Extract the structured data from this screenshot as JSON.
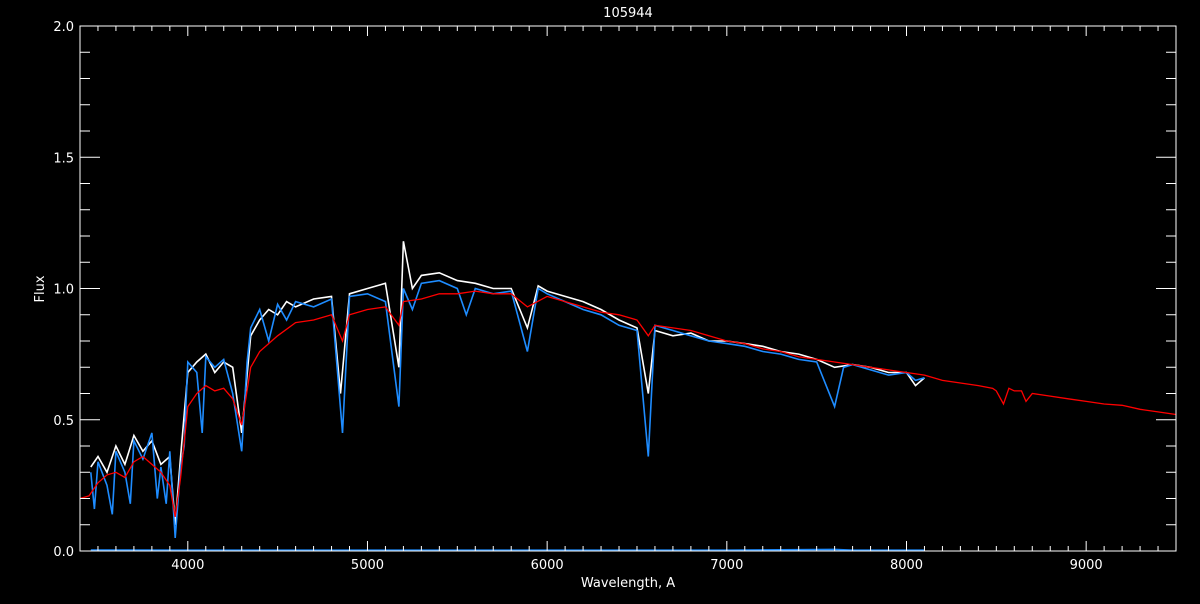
{
  "chart_data": {
    "type": "line",
    "title": "105944",
    "xlabel": "Wavelength, A",
    "ylabel": "Flux",
    "xlim": [
      3400,
      9500
    ],
    "ylim": [
      0.0,
      2.0
    ],
    "x_ticks": [
      4000,
      5000,
      6000,
      7000,
      8000,
      9000
    ],
    "x_tick_labels": [
      "4000",
      "5000",
      "6000",
      "7000",
      "8000",
      "9000"
    ],
    "y_ticks": [
      0.0,
      0.5,
      1.0,
      1.5,
      2.0
    ],
    "y_tick_labels": [
      "0.0",
      "0.5",
      "1.0",
      "1.5",
      "2.0"
    ],
    "x_minor_step": 100,
    "y_minor_step": 0.1,
    "grid": false,
    "background": "#000000",
    "series": [
      {
        "color": "#ffffff",
        "points": [
          [
            3460,
            0.32
          ],
          [
            3500,
            0.36
          ],
          [
            3550,
            0.3
          ],
          [
            3600,
            0.4
          ],
          [
            3650,
            0.33
          ],
          [
            3700,
            0.44
          ],
          [
            3750,
            0.38
          ],
          [
            3800,
            0.42
          ],
          [
            3850,
            0.33
          ],
          [
            3900,
            0.36
          ],
          [
            3930,
            0.1
          ],
          [
            3960,
            0.36
          ],
          [
            4000,
            0.68
          ],
          [
            4050,
            0.72
          ],
          [
            4100,
            0.75
          ],
          [
            4150,
            0.68
          ],
          [
            4200,
            0.72
          ],
          [
            4250,
            0.7
          ],
          [
            4300,
            0.45
          ],
          [
            4350,
            0.82
          ],
          [
            4400,
            0.88
          ],
          [
            4450,
            0.92
          ],
          [
            4500,
            0.9
          ],
          [
            4550,
            0.95
          ],
          [
            4600,
            0.93
          ],
          [
            4700,
            0.96
          ],
          [
            4800,
            0.97
          ],
          [
            4850,
            0.6
          ],
          [
            4900,
            0.98
          ],
          [
            5000,
            1.0
          ],
          [
            5100,
            1.02
          ],
          [
            5175,
            0.7
          ],
          [
            5200,
            1.18
          ],
          [
            5250,
            1.0
          ],
          [
            5300,
            1.05
          ],
          [
            5400,
            1.06
          ],
          [
            5500,
            1.03
          ],
          [
            5600,
            1.02
          ],
          [
            5700,
            1.0
          ],
          [
            5800,
            1.0
          ],
          [
            5890,
            0.85
          ],
          [
            5950,
            1.01
          ],
          [
            6000,
            0.99
          ],
          [
            6100,
            0.97
          ],
          [
            6200,
            0.95
          ],
          [
            6300,
            0.92
          ],
          [
            6400,
            0.88
          ],
          [
            6500,
            0.85
          ],
          [
            6563,
            0.6
          ],
          [
            6600,
            0.84
          ],
          [
            6700,
            0.82
          ],
          [
            6800,
            0.83
          ],
          [
            6900,
            0.8
          ],
          [
            7000,
            0.8
          ],
          [
            7100,
            0.79
          ],
          [
            7200,
            0.78
          ],
          [
            7300,
            0.76
          ],
          [
            7400,
            0.75
          ],
          [
            7500,
            0.73
          ],
          [
            7600,
            0.7
          ],
          [
            7700,
            0.71
          ],
          [
            7800,
            0.7
          ],
          [
            7900,
            0.68
          ],
          [
            8000,
            0.68
          ],
          [
            8050,
            0.63
          ],
          [
            8100,
            0.66
          ]
        ]
      },
      {
        "color": "#1e8cff",
        "points": [
          [
            3460,
            0.3
          ],
          [
            3480,
            0.16
          ],
          [
            3500,
            0.34
          ],
          [
            3550,
            0.25
          ],
          [
            3580,
            0.14
          ],
          [
            3600,
            0.38
          ],
          [
            3650,
            0.3
          ],
          [
            3680,
            0.18
          ],
          [
            3700,
            0.42
          ],
          [
            3750,
            0.35
          ],
          [
            3800,
            0.45
          ],
          [
            3830,
            0.2
          ],
          [
            3850,
            0.32
          ],
          [
            3880,
            0.18
          ],
          [
            3900,
            0.38
          ],
          [
            3930,
            0.05
          ],
          [
            3960,
            0.32
          ],
          [
            3980,
            0.4
          ],
          [
            4000,
            0.72
          ],
          [
            4050,
            0.68
          ],
          [
            4080,
            0.45
          ],
          [
            4100,
            0.74
          ],
          [
            4150,
            0.7
          ],
          [
            4200,
            0.73
          ],
          [
            4250,
            0.6
          ],
          [
            4300,
            0.38
          ],
          [
            4330,
            0.72
          ],
          [
            4350,
            0.85
          ],
          [
            4400,
            0.92
          ],
          [
            4450,
            0.8
          ],
          [
            4500,
            0.94
          ],
          [
            4550,
            0.88
          ],
          [
            4600,
            0.95
          ],
          [
            4700,
            0.93
          ],
          [
            4800,
            0.96
          ],
          [
            4861,
            0.45
          ],
          [
            4900,
            0.97
          ],
          [
            5000,
            0.98
          ],
          [
            5100,
            0.95
          ],
          [
            5175,
            0.55
          ],
          [
            5200,
            1.0
          ],
          [
            5250,
            0.92
          ],
          [
            5300,
            1.02
          ],
          [
            5400,
            1.03
          ],
          [
            5500,
            1.0
          ],
          [
            5550,
            0.9
          ],
          [
            5600,
            1.0
          ],
          [
            5700,
            0.98
          ],
          [
            5800,
            0.99
          ],
          [
            5890,
            0.76
          ],
          [
            5950,
            1.0
          ],
          [
            6000,
            0.98
          ],
          [
            6100,
            0.95
          ],
          [
            6200,
            0.92
          ],
          [
            6300,
            0.9
          ],
          [
            6400,
            0.86
          ],
          [
            6500,
            0.84
          ],
          [
            6563,
            0.36
          ],
          [
            6600,
            0.86
          ],
          [
            6700,
            0.84
          ],
          [
            6800,
            0.82
          ],
          [
            6900,
            0.8
          ],
          [
            7000,
            0.79
          ],
          [
            7100,
            0.78
          ],
          [
            7200,
            0.76
          ],
          [
            7300,
            0.75
          ],
          [
            7400,
            0.73
          ],
          [
            7500,
            0.72
          ],
          [
            7600,
            0.55
          ],
          [
            7650,
            0.7
          ],
          [
            7700,
            0.71
          ],
          [
            7800,
            0.69
          ],
          [
            7900,
            0.67
          ],
          [
            8000,
            0.68
          ],
          [
            8050,
            0.65
          ],
          [
            8100,
            0.66
          ]
        ]
      },
      {
        "color": "#ff0000",
        "points": [
          [
            3400,
            0.2
          ],
          [
            3450,
            0.21
          ],
          [
            3500,
            0.26
          ],
          [
            3550,
            0.29
          ],
          [
            3600,
            0.3
          ],
          [
            3650,
            0.28
          ],
          [
            3700,
            0.34
          ],
          [
            3750,
            0.36
          ],
          [
            3800,
            0.33
          ],
          [
            3850,
            0.3
          ],
          [
            3900,
            0.25
          ],
          [
            3930,
            0.13
          ],
          [
            3960,
            0.28
          ],
          [
            4000,
            0.55
          ],
          [
            4050,
            0.6
          ],
          [
            4100,
            0.63
          ],
          [
            4150,
            0.61
          ],
          [
            4200,
            0.62
          ],
          [
            4250,
            0.58
          ],
          [
            4300,
            0.48
          ],
          [
            4350,
            0.7
          ],
          [
            4400,
            0.76
          ],
          [
            4500,
            0.82
          ],
          [
            4600,
            0.87
          ],
          [
            4700,
            0.88
          ],
          [
            4800,
            0.9
          ],
          [
            4861,
            0.8
          ],
          [
            4900,
            0.9
          ],
          [
            5000,
            0.92
          ],
          [
            5100,
            0.93
          ],
          [
            5175,
            0.86
          ],
          [
            5200,
            0.95
          ],
          [
            5300,
            0.96
          ],
          [
            5400,
            0.98
          ],
          [
            5500,
            0.98
          ],
          [
            5600,
            0.99
          ],
          [
            5700,
            0.98
          ],
          [
            5800,
            0.98
          ],
          [
            5890,
            0.93
          ],
          [
            6000,
            0.97
          ],
          [
            6100,
            0.95
          ],
          [
            6200,
            0.93
          ],
          [
            6300,
            0.91
          ],
          [
            6400,
            0.9
          ],
          [
            6500,
            0.88
          ],
          [
            6563,
            0.82
          ],
          [
            6600,
            0.86
          ],
          [
            6700,
            0.85
          ],
          [
            6800,
            0.84
          ],
          [
            6900,
            0.82
          ],
          [
            7000,
            0.8
          ],
          [
            7100,
            0.79
          ],
          [
            7200,
            0.77
          ],
          [
            7300,
            0.76
          ],
          [
            7400,
            0.74
          ],
          [
            7500,
            0.73
          ],
          [
            7600,
            0.72
          ],
          [
            7700,
            0.71
          ],
          [
            7800,
            0.7
          ],
          [
            7900,
            0.69
          ],
          [
            8000,
            0.68
          ],
          [
            8100,
            0.67
          ],
          [
            8200,
            0.65
          ],
          [
            8300,
            0.64
          ],
          [
            8400,
            0.63
          ],
          [
            8480,
            0.62
          ],
          [
            8500,
            0.61
          ],
          [
            8540,
            0.56
          ],
          [
            8570,
            0.62
          ],
          [
            8600,
            0.61
          ],
          [
            8640,
            0.61
          ],
          [
            8665,
            0.57
          ],
          [
            8700,
            0.6
          ],
          [
            8800,
            0.59
          ],
          [
            8900,
            0.58
          ],
          [
            9000,
            0.57
          ],
          [
            9100,
            0.56
          ],
          [
            9200,
            0.555
          ],
          [
            9300,
            0.54
          ],
          [
            9400,
            0.53
          ],
          [
            9500,
            0.52
          ]
        ]
      },
      {
        "color": "#1e8cff",
        "points": [
          [
            3460,
            0.004
          ],
          [
            4000,
            0.003
          ],
          [
            5000,
            0.003
          ],
          [
            6000,
            0.003
          ],
          [
            7000,
            0.003
          ],
          [
            7600,
            0.006
          ],
          [
            7700,
            0.003
          ],
          [
            8100,
            0.003
          ]
        ]
      }
    ]
  }
}
